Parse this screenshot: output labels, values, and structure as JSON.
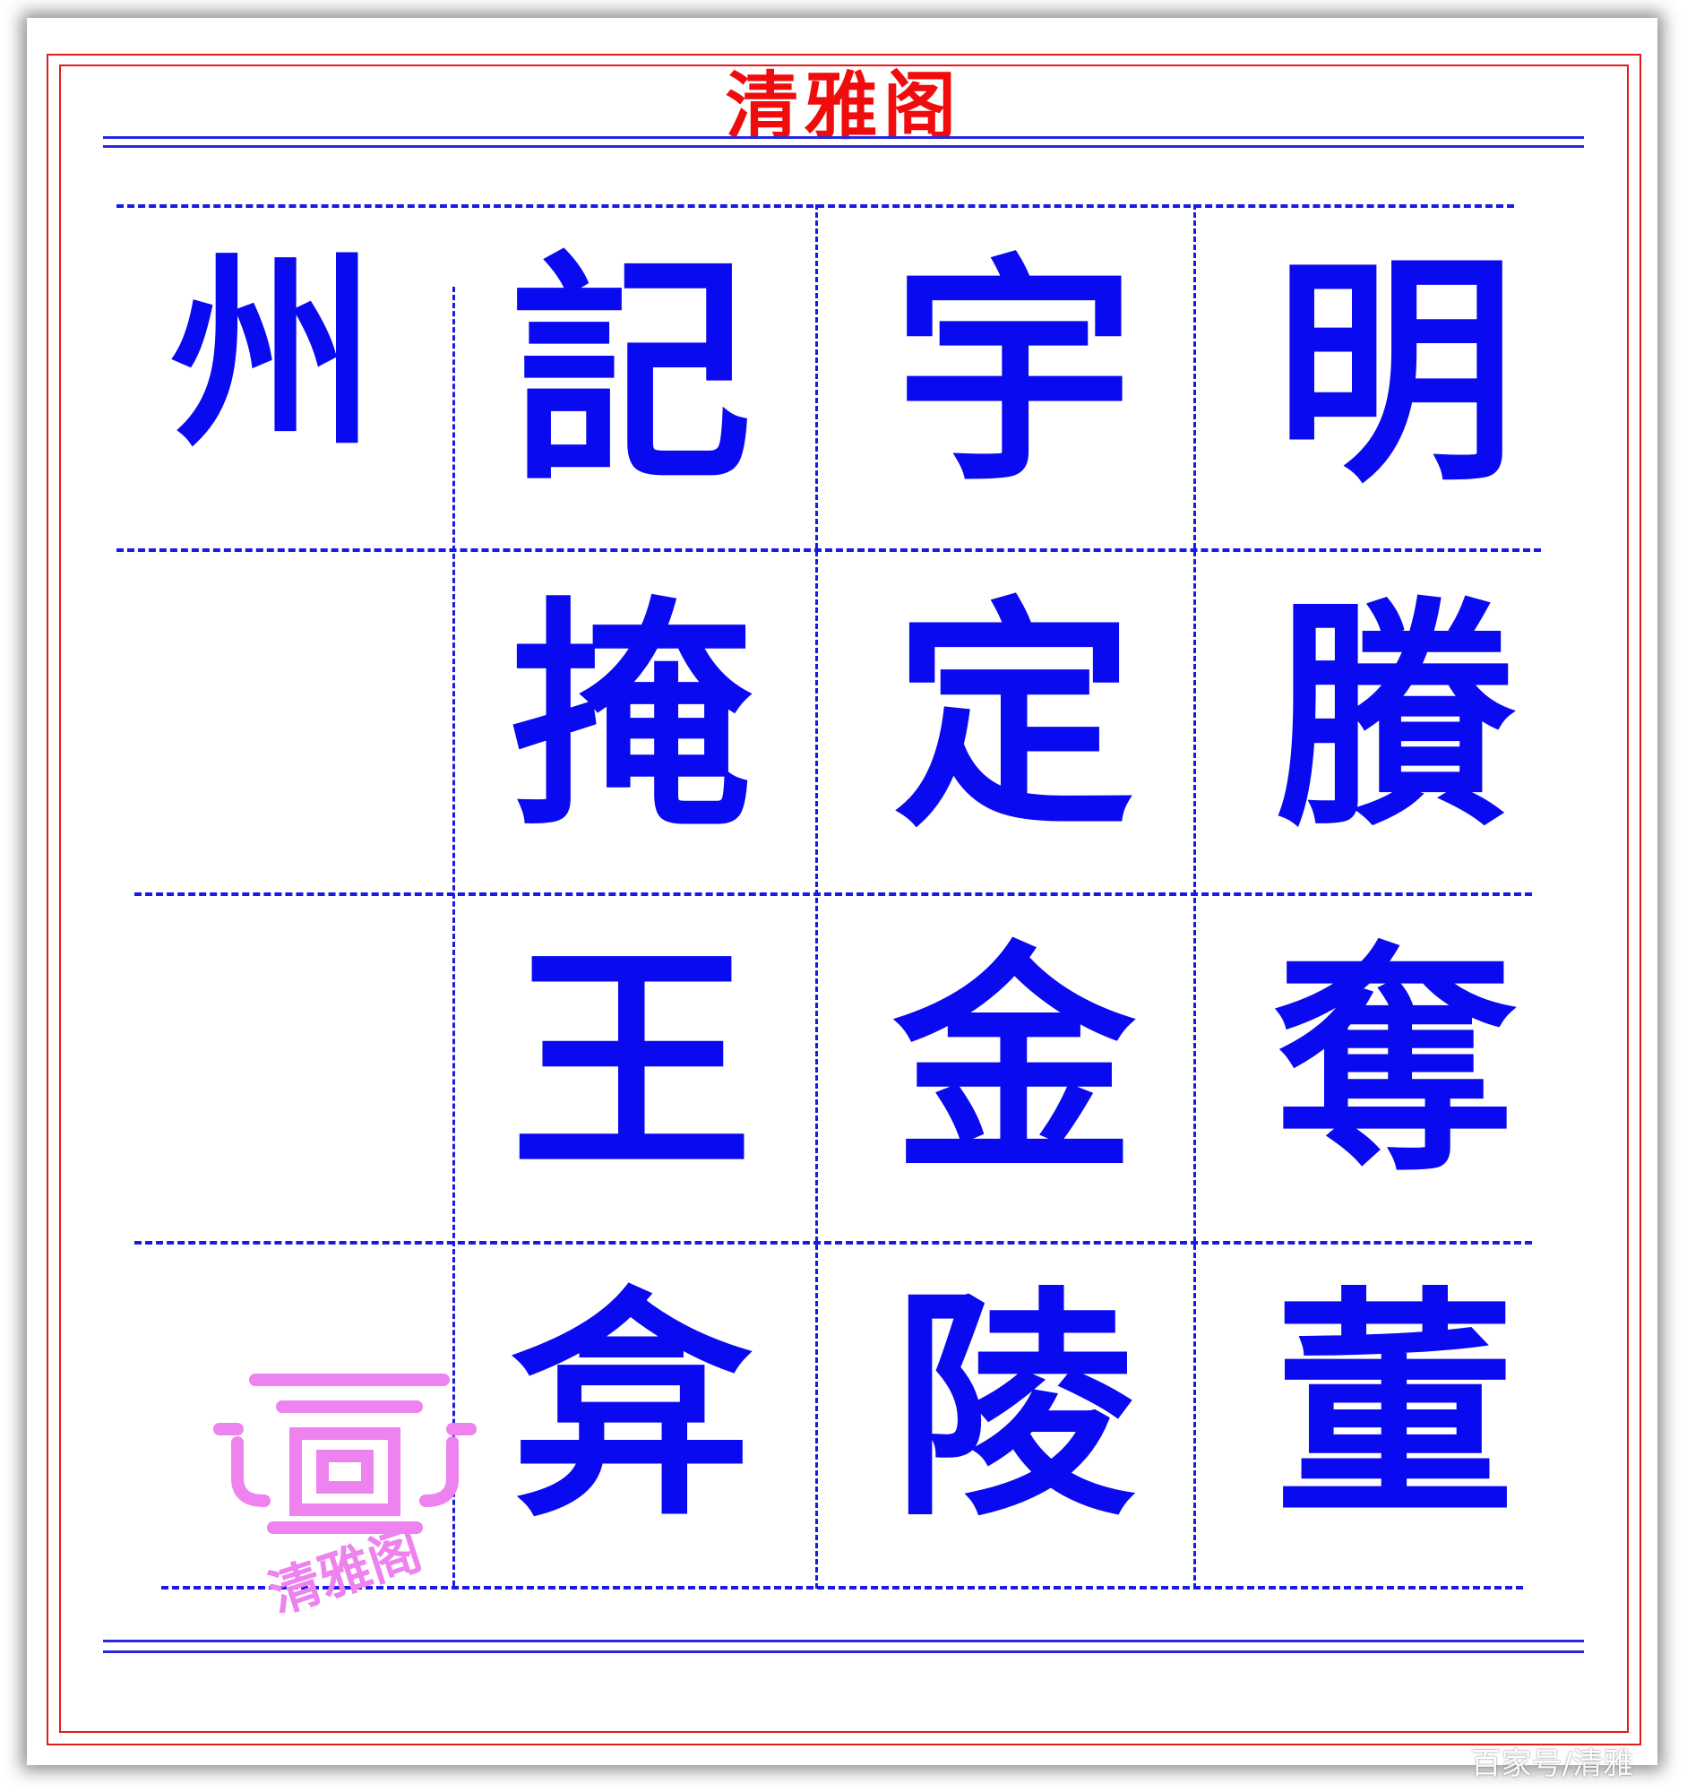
{
  "header": {
    "title": "清雅阁"
  },
  "columns": [
    {
      "chars": [
        "明",
        "賸",
        "奪",
        "董"
      ]
    },
    {
      "chars": [
        "宇",
        "定",
        "金",
        "陵"
      ]
    },
    {
      "chars": [
        "記",
        "掩",
        "王",
        "弇"
      ]
    },
    {
      "chars": [
        "州"
      ]
    }
  ],
  "stamp": {
    "label": "清雅阁",
    "color": "#ee82ee"
  },
  "watermark": {
    "text": "百家号/清雅"
  },
  "colors": {
    "ink": "#0a0af0",
    "grid": "#1a1ae6",
    "frame": "#e21b1b",
    "title": "#f00c0c"
  }
}
